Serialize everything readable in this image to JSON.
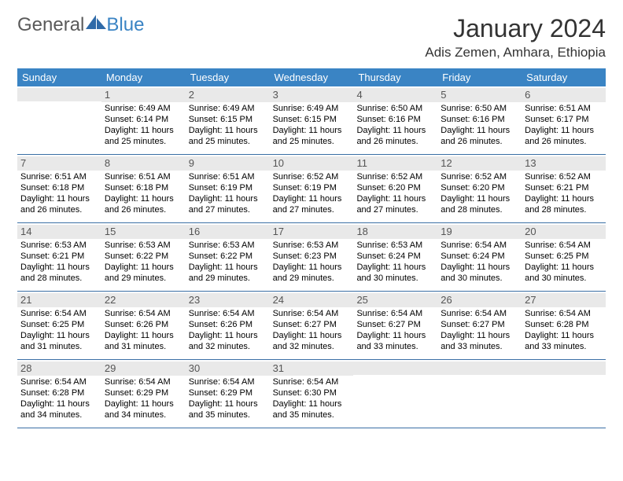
{
  "brand": {
    "part1": "General",
    "part2": "Blue",
    "logo_fill": "#2f6aa8"
  },
  "header": {
    "title": "January 2024",
    "subtitle": "Adis Zemen, Amhara, Ethiopia"
  },
  "colors": {
    "header_bar": "#3a84c4",
    "header_text": "#ffffff",
    "daynum_bg": "#e9e9e9",
    "daynum_text": "#555555",
    "week_rule": "#3a6fa5"
  },
  "dow": [
    "Sunday",
    "Monday",
    "Tuesday",
    "Wednesday",
    "Thursday",
    "Friday",
    "Saturday"
  ],
  "weeks": [
    [
      {
        "n": "",
        "lines": []
      },
      {
        "n": "1",
        "lines": [
          "Sunrise: 6:49 AM",
          "Sunset: 6:14 PM",
          "Daylight: 11 hours and 25 minutes."
        ]
      },
      {
        "n": "2",
        "lines": [
          "Sunrise: 6:49 AM",
          "Sunset: 6:15 PM",
          "Daylight: 11 hours and 25 minutes."
        ]
      },
      {
        "n": "3",
        "lines": [
          "Sunrise: 6:49 AM",
          "Sunset: 6:15 PM",
          "Daylight: 11 hours and 25 minutes."
        ]
      },
      {
        "n": "4",
        "lines": [
          "Sunrise: 6:50 AM",
          "Sunset: 6:16 PM",
          "Daylight: 11 hours and 26 minutes."
        ]
      },
      {
        "n": "5",
        "lines": [
          "Sunrise: 6:50 AM",
          "Sunset: 6:16 PM",
          "Daylight: 11 hours and 26 minutes."
        ]
      },
      {
        "n": "6",
        "lines": [
          "Sunrise: 6:51 AM",
          "Sunset: 6:17 PM",
          "Daylight: 11 hours and 26 minutes."
        ]
      }
    ],
    [
      {
        "n": "7",
        "lines": [
          "Sunrise: 6:51 AM",
          "Sunset: 6:18 PM",
          "Daylight: 11 hours and 26 minutes."
        ]
      },
      {
        "n": "8",
        "lines": [
          "Sunrise: 6:51 AM",
          "Sunset: 6:18 PM",
          "Daylight: 11 hours and 26 minutes."
        ]
      },
      {
        "n": "9",
        "lines": [
          "Sunrise: 6:51 AM",
          "Sunset: 6:19 PM",
          "Daylight: 11 hours and 27 minutes."
        ]
      },
      {
        "n": "10",
        "lines": [
          "Sunrise: 6:52 AM",
          "Sunset: 6:19 PM",
          "Daylight: 11 hours and 27 minutes."
        ]
      },
      {
        "n": "11",
        "lines": [
          "Sunrise: 6:52 AM",
          "Sunset: 6:20 PM",
          "Daylight: 11 hours and 27 minutes."
        ]
      },
      {
        "n": "12",
        "lines": [
          "Sunrise: 6:52 AM",
          "Sunset: 6:20 PM",
          "Daylight: 11 hours and 28 minutes."
        ]
      },
      {
        "n": "13",
        "lines": [
          "Sunrise: 6:52 AM",
          "Sunset: 6:21 PM",
          "Daylight: 11 hours and 28 minutes."
        ]
      }
    ],
    [
      {
        "n": "14",
        "lines": [
          "Sunrise: 6:53 AM",
          "Sunset: 6:21 PM",
          "Daylight: 11 hours and 28 minutes."
        ]
      },
      {
        "n": "15",
        "lines": [
          "Sunrise: 6:53 AM",
          "Sunset: 6:22 PM",
          "Daylight: 11 hours and 29 minutes."
        ]
      },
      {
        "n": "16",
        "lines": [
          "Sunrise: 6:53 AM",
          "Sunset: 6:22 PM",
          "Daylight: 11 hours and 29 minutes."
        ]
      },
      {
        "n": "17",
        "lines": [
          "Sunrise: 6:53 AM",
          "Sunset: 6:23 PM",
          "Daylight: 11 hours and 29 minutes."
        ]
      },
      {
        "n": "18",
        "lines": [
          "Sunrise: 6:53 AM",
          "Sunset: 6:24 PM",
          "Daylight: 11 hours and 30 minutes."
        ]
      },
      {
        "n": "19",
        "lines": [
          "Sunrise: 6:54 AM",
          "Sunset: 6:24 PM",
          "Daylight: 11 hours and 30 minutes."
        ]
      },
      {
        "n": "20",
        "lines": [
          "Sunrise: 6:54 AM",
          "Sunset: 6:25 PM",
          "Daylight: 11 hours and 30 minutes."
        ]
      }
    ],
    [
      {
        "n": "21",
        "lines": [
          "Sunrise: 6:54 AM",
          "Sunset: 6:25 PM",
          "Daylight: 11 hours and 31 minutes."
        ]
      },
      {
        "n": "22",
        "lines": [
          "Sunrise: 6:54 AM",
          "Sunset: 6:26 PM",
          "Daylight: 11 hours and 31 minutes."
        ]
      },
      {
        "n": "23",
        "lines": [
          "Sunrise: 6:54 AM",
          "Sunset: 6:26 PM",
          "Daylight: 11 hours and 32 minutes."
        ]
      },
      {
        "n": "24",
        "lines": [
          "Sunrise: 6:54 AM",
          "Sunset: 6:27 PM",
          "Daylight: 11 hours and 32 minutes."
        ]
      },
      {
        "n": "25",
        "lines": [
          "Sunrise: 6:54 AM",
          "Sunset: 6:27 PM",
          "Daylight: 11 hours and 33 minutes."
        ]
      },
      {
        "n": "26",
        "lines": [
          "Sunrise: 6:54 AM",
          "Sunset: 6:27 PM",
          "Daylight: 11 hours and 33 minutes."
        ]
      },
      {
        "n": "27",
        "lines": [
          "Sunrise: 6:54 AM",
          "Sunset: 6:28 PM",
          "Daylight: 11 hours and 33 minutes."
        ]
      }
    ],
    [
      {
        "n": "28",
        "lines": [
          "Sunrise: 6:54 AM",
          "Sunset: 6:28 PM",
          "Daylight: 11 hours and 34 minutes."
        ]
      },
      {
        "n": "29",
        "lines": [
          "Sunrise: 6:54 AM",
          "Sunset: 6:29 PM",
          "Daylight: 11 hours and 34 minutes."
        ]
      },
      {
        "n": "30",
        "lines": [
          "Sunrise: 6:54 AM",
          "Sunset: 6:29 PM",
          "Daylight: 11 hours and 35 minutes."
        ]
      },
      {
        "n": "31",
        "lines": [
          "Sunrise: 6:54 AM",
          "Sunset: 6:30 PM",
          "Daylight: 11 hours and 35 minutes."
        ]
      },
      {
        "n": "",
        "lines": []
      },
      {
        "n": "",
        "lines": []
      },
      {
        "n": "",
        "lines": []
      }
    ]
  ]
}
